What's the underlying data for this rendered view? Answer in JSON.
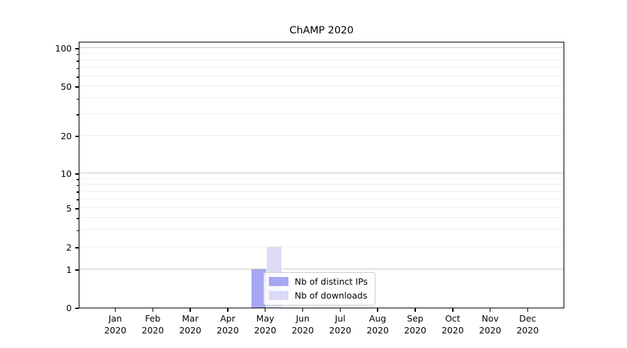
{
  "chart_data": {
    "type": "bar",
    "title": "ChAMP 2020",
    "months": [
      "Jan",
      "Feb",
      "Mar",
      "Apr",
      "May",
      "Jun",
      "Jul",
      "Aug",
      "Sep",
      "Oct",
      "Nov",
      "Dec"
    ],
    "year": "2020",
    "series": [
      {
        "name": "Nb of distinct IPs",
        "color": "#a6a6f2",
        "values": [
          0,
          0,
          0,
          0,
          1,
          0,
          0,
          0,
          0,
          0,
          0,
          0
        ]
      },
      {
        "name": "Nb of downloads",
        "color": "#dbdbf7",
        "values": [
          0,
          0,
          0,
          0,
          2,
          0,
          0,
          0,
          0,
          0,
          0,
          0
        ]
      }
    ],
    "y_axis": {
      "scale": "symlog",
      "ylim": [
        0,
        110
      ],
      "ticks": [
        {
          "value": 0,
          "frac": 0.0
        },
        {
          "value": 1,
          "frac": 0.1436
        },
        {
          "value": 2,
          "frac": 0.2272
        },
        {
          "value": 5,
          "frac": 0.3734
        },
        {
          "value": 10,
          "frac": 0.5039
        },
        {
          "value": 20,
          "frac": 0.6449
        },
        {
          "value": 50,
          "frac": 0.8303
        },
        {
          "value": 100,
          "frac": 0.9739
        }
      ],
      "minor_ticks": [
        {
          "value": 3,
          "frac": 0.2919
        },
        {
          "value": 4,
          "frac": 0.3378
        },
        {
          "value": 6,
          "frac": 0.4078
        },
        {
          "value": 7,
          "frac": 0.4368
        },
        {
          "value": 8,
          "frac": 0.4619
        },
        {
          "value": 9,
          "frac": 0.4841
        },
        {
          "value": 30,
          "frac": 0.7269
        },
        {
          "value": 40,
          "frac": 0.7851
        },
        {
          "value": 60,
          "frac": 0.8681
        },
        {
          "value": 70,
          "frac": 0.9
        },
        {
          "value": 80,
          "frac": 0.9277
        },
        {
          "value": 90,
          "frac": 0.952
        }
      ],
      "major_grid_values": [
        1,
        10,
        100
      ]
    },
    "x_axis": {
      "first_center_frac": 0.0753,
      "step_frac": 0.0772,
      "bar_width_frac": 0.0301
    },
    "colors": {
      "major_grid": "#c8c8c8",
      "minor_grid": "#eeeeee",
      "spine": "#000000",
      "legend_border": "#cccccc"
    },
    "grid": "horizontal",
    "legend_position": "inside-lower-middle"
  }
}
